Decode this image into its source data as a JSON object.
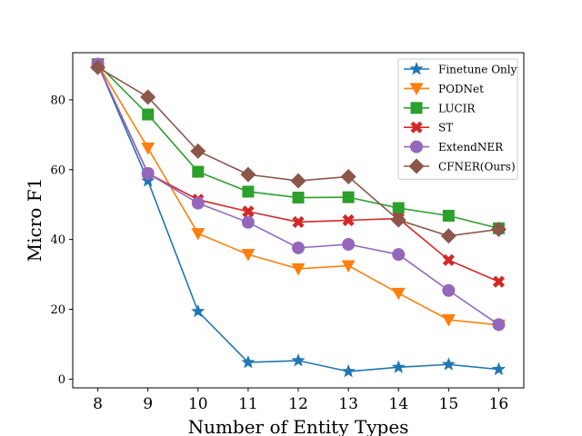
{
  "chart_data": {
    "type": "line",
    "title": "",
    "xlabel": "Number of Entity Types",
    "ylabel": "Micro F1",
    "x": [
      8,
      9,
      10,
      11,
      12,
      13,
      14,
      15,
      16
    ],
    "xlim": [
      7.5,
      16.5
    ],
    "ylim": [
      -2.5,
      93.5
    ],
    "xticks": [
      8,
      9,
      10,
      11,
      12,
      13,
      14,
      15,
      16
    ],
    "yticks": [
      0,
      20,
      40,
      60,
      80
    ],
    "grid": false,
    "legend_position": "top-right",
    "series": [
      {
        "name": "Finetune Only",
        "color": "#1f77b4",
        "marker": "star",
        "values": [
          90.2,
          56.8,
          19.4,
          4.8,
          5.3,
          2.2,
          3.4,
          4.2,
          2.8
        ]
      },
      {
        "name": "PODNet",
        "color": "#ff7f0e",
        "marker": "triangle-down",
        "values": [
          90.2,
          66.2,
          41.7,
          35.7,
          31.6,
          32.5,
          24.6,
          17.0,
          15.5
        ]
      },
      {
        "name": "LUCIR",
        "color": "#2ca02c",
        "marker": "square",
        "values": [
          90.2,
          75.8,
          59.4,
          53.7,
          52.0,
          52.1,
          49.0,
          46.8,
          43.2
        ]
      },
      {
        "name": "ST",
        "color": "#d62728",
        "marker": "x",
        "values": [
          90.2,
          58.9,
          51.4,
          48.0,
          45.0,
          45.5,
          46.0,
          34.1,
          27.9
        ]
      },
      {
        "name": "ExtendNER",
        "color": "#9467bd",
        "marker": "circle",
        "values": [
          90.2,
          58.9,
          50.4,
          44.9,
          37.6,
          38.6,
          35.7,
          25.4,
          15.6
        ]
      },
      {
        "name": "CFNER(Ours)",
        "color": "#8c564b",
        "marker": "diamond",
        "values": [
          89.3,
          80.8,
          65.3,
          58.6,
          56.8,
          58.0,
          45.6,
          41.0,
          42.9
        ]
      }
    ]
  }
}
